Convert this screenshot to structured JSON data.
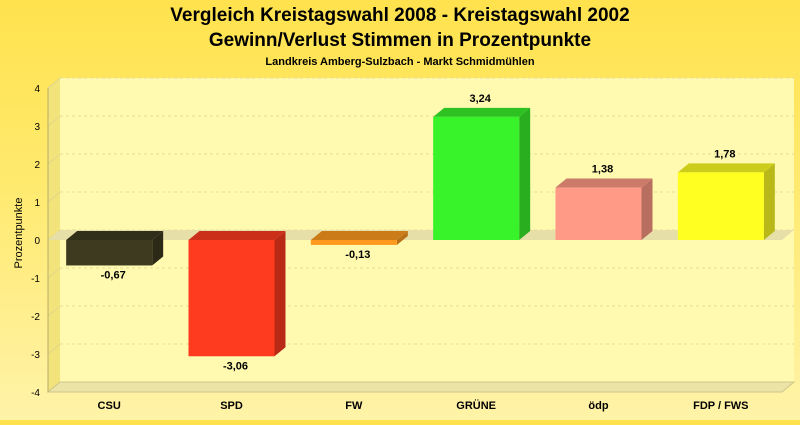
{
  "chart_data": {
    "type": "bar",
    "title": "Vergleich Kreistagswahl 2008 - Kreistagswahl 2002",
    "title_line2": "Gewinn/Verlust Stimmen in Prozentpunkte",
    "subtitle": "Landkreis Amberg-Sulzbach - Markt Schmidmühlen",
    "ylabel": "Prozentpunkte",
    "xlabel": "",
    "ylim": [
      -4,
      4
    ],
    "yticks": [
      -4,
      -3,
      -2,
      -1,
      0,
      1,
      2,
      3,
      4
    ],
    "grid": true,
    "categories": [
      "CSU",
      "SPD",
      "FW",
      "GRÜNE",
      "ödp",
      "FDP / FWS"
    ],
    "values": [
      -0.67,
      -3.06,
      -0.13,
      3.24,
      1.38,
      1.78
    ],
    "value_labels": [
      "-0,67",
      "-3,06",
      "-0,13",
      "3,24",
      "1,38",
      "1,78"
    ],
    "colors": [
      "#3d3a1f",
      "#ff3b1f",
      "#ff9a1f",
      "#38f22a",
      "#ff9a86",
      "#ffff22"
    ]
  }
}
